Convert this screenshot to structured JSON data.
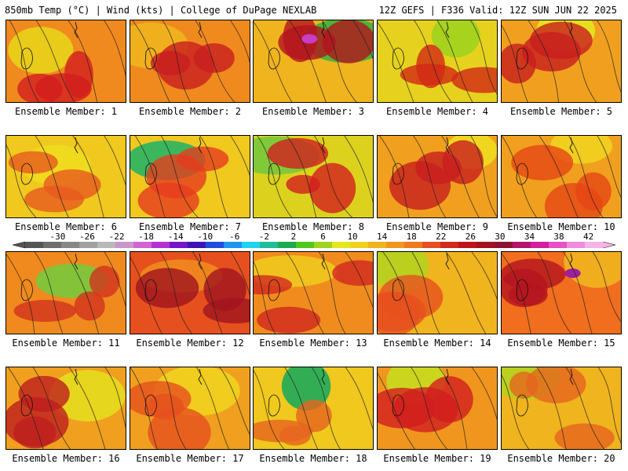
{
  "header": {
    "left": "850mb Temp (°C) | Wind (kts) | College of DuPage NEXLAB",
    "right": "12Z GEFS | F336 Valid: 12Z SUN JUN 22 2025"
  },
  "members": [
    {
      "label": "Ensemble Member: 1",
      "base": "#f08a1e",
      "warm": "#d21e1e",
      "cool": "#e8d21a",
      "hot": null
    },
    {
      "label": "Ensemble Member: 2",
      "base": "#f08a1e",
      "warm": "#c81e1e",
      "cool": "#f0b41e",
      "hot": null
    },
    {
      "label": "Ensemble Member: 3",
      "base": "#f0b41e",
      "warm": "#b4141e",
      "cool": "#3cb43c",
      "hot": "#c83cc8"
    },
    {
      "label": "Ensemble Member: 4",
      "base": "#e6d21e",
      "warm": "#d22814",
      "cool": "#a0d21e",
      "hot": null
    },
    {
      "label": "Ensemble Member: 5",
      "base": "#f0a01e",
      "warm": "#c81e1e",
      "cool": "#e6e61e",
      "hot": null
    },
    {
      "label": "Ensemble Member: 6",
      "base": "#f0c81e",
      "warm": "#e65a1e",
      "cool": "#f0dc1e",
      "hot": null
    },
    {
      "label": "Ensemble Member: 7",
      "base": "#f0c81e",
      "warm": "#e63c1e",
      "cool": "#28b464",
      "hot": null
    },
    {
      "label": "Ensemble Member: 8",
      "base": "#dcd21e",
      "warm": "#d21e1e",
      "cool": "#78c83c",
      "hot": null
    },
    {
      "label": "Ensemble Member: 9",
      "base": "#f0a01e",
      "warm": "#c81e1e",
      "cool": "#f0dc1e",
      "hot": null
    },
    {
      "label": "Ensemble Member: 10",
      "base": "#f0a01e",
      "warm": "#e64614",
      "cool": "#f0d21e",
      "hot": null
    },
    {
      "label": "Ensemble Member: 11",
      "base": "#f08a1e",
      "warm": "#d2321e",
      "cool": "#78c83c",
      "hot": null
    },
    {
      "label": "Ensemble Member: 12",
      "base": "#e6501e",
      "warm": "#a0141e",
      "cool": "#f08a1e",
      "hot": null
    },
    {
      "label": "Ensemble Member: 13",
      "base": "#f08c1e",
      "warm": "#d2281e",
      "cool": "#f0c81e",
      "hot": null
    },
    {
      "label": "Ensemble Member: 14",
      "base": "#f0b41e",
      "warm": "#e6501e",
      "cool": "#b4d21e",
      "hot": null
    },
    {
      "label": "Ensemble Member: 15",
      "base": "#f06e1e",
      "warm": "#b4141e",
      "cool": "#f0b41e",
      "hot": "#a01ea0"
    },
    {
      "label": "Ensemble Member: 16",
      "base": "#f0a01e",
      "warm": "#be1e1e",
      "cool": "#e6dc1e",
      "hot": null
    },
    {
      "label": "Ensemble Member: 17",
      "base": "#f0a01e",
      "warm": "#e6501e",
      "cool": "#f0d21e",
      "hot": null
    },
    {
      "label": "Ensemble Member: 18",
      "base": "#f0c81e",
      "warm": "#e6641e",
      "cool": "#1eaa5a",
      "hot": null
    },
    {
      "label": "Ensemble Member: 19",
      "base": "#f0961e",
      "warm": "#d21e1e",
      "cool": "#c8dc1e",
      "hot": null
    },
    {
      "label": "Ensemble Member: 20",
      "base": "#f0b41e",
      "warm": "#e6641e",
      "cool": "#b4d21e",
      "hot": null
    }
  ],
  "colorbar": {
    "labels": [
      "-30",
      "-26",
      "-22",
      "-18",
      "-14",
      "-10",
      "-6",
      "-2",
      "2",
      "6",
      "10",
      "14",
      "18",
      "22",
      "26",
      "30",
      "34",
      "38",
      "42"
    ],
    "colors": [
      "#555555",
      "#6e6e6e",
      "#878787",
      "#a0a0a0",
      "#b9b9b9",
      "#c896c8",
      "#d264d2",
      "#b432d2",
      "#7814c8",
      "#3c14b4",
      "#1e50dc",
      "#1e96f0",
      "#1ed2f0",
      "#1ebe96",
      "#1eaa50",
      "#50c81e",
      "#a0d21e",
      "#e6e61e",
      "#f0d21e",
      "#f0b41e",
      "#f0961e",
      "#f0781e",
      "#e6501e",
      "#d2281e",
      "#be141e",
      "#a0141e",
      "#8c1432",
      "#b4146e",
      "#d21ea0",
      "#e650c8",
      "#f08cdc",
      "#f5b4e6"
    ]
  }
}
